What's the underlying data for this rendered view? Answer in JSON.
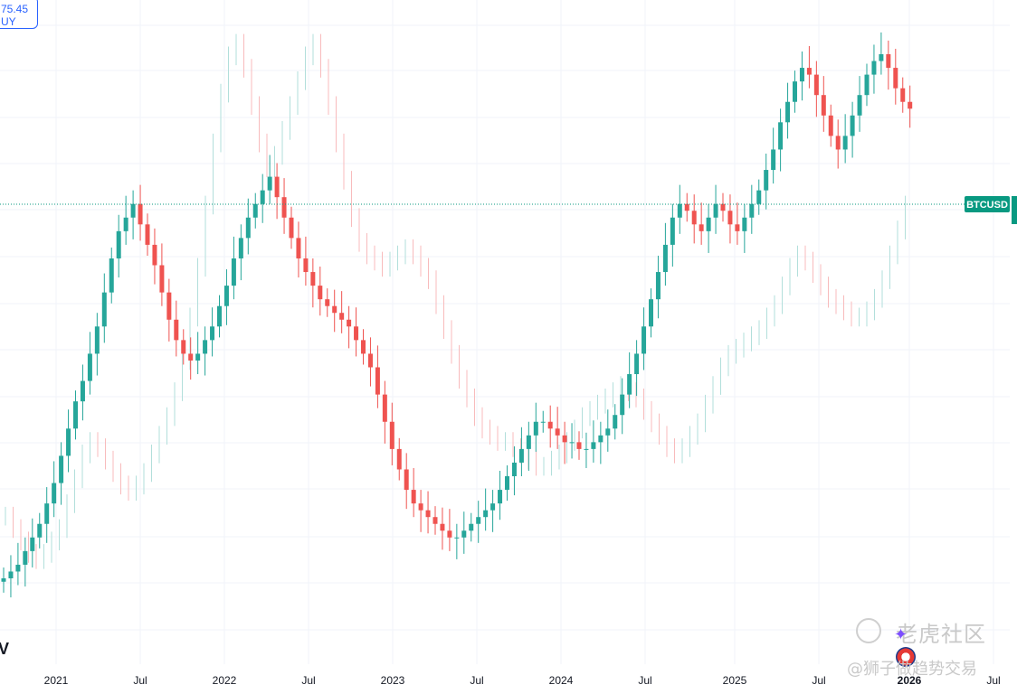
{
  "price_box": {
    "line1": "75.45",
    "line2": "UY"
  },
  "symbol_tag": "BTCUSD",
  "tv_logo": "V",
  "watermark": {
    "line1": "老虎社区",
    "line2": "@狮子做趋势交易"
  },
  "colors": {
    "up": "#26a69a",
    "down": "#ef5350",
    "faded_up": "#b2dfdb",
    "faded_down": "#f8bbbc",
    "grid": "#f0f3fa",
    "tag": "#089981"
  },
  "icons": [
    "tradingview-logo-icon",
    "tiger-community-icon",
    "spark-icon",
    "us-flag-icon"
  ],
  "chart_data": {
    "type": "candlestick",
    "x_tick_labels": [
      "2021",
      "Jul",
      "2022",
      "Jul",
      "2023",
      "Jul",
      "2024",
      "Jul",
      "2025",
      "Jul",
      "2026",
      "Jul"
    ],
    "x_tick_dates": [
      "2021-01",
      "2021-07",
      "2022-01",
      "2022-07",
      "2023-01",
      "2023-07",
      "2024-01",
      "2024-07",
      "2025-01",
      "2025-07",
      "2026-01",
      "2026-07"
    ],
    "highlighted_tick": "2026",
    "y_axis_labels": "none visible",
    "grid": true,
    "series": [
      {
        "name": "BTCUSD",
        "style": "weekly candles",
        "closes": [
          33,
          34,
          35,
          37,
          39,
          41,
          44,
          47,
          51,
          55,
          59,
          62,
          66,
          70,
          75,
          80,
          84,
          86,
          88,
          85,
          82,
          79,
          75,
          71,
          68,
          66,
          65,
          66,
          68,
          70,
          73,
          76,
          80,
          83,
          86,
          88,
          90,
          92,
          89,
          86,
          83,
          80,
          78,
          76,
          74,
          73,
          72,
          71,
          70,
          68,
          66,
          64,
          60,
          56,
          52,
          49,
          46,
          44,
          43,
          42,
          41,
          40,
          39,
          39,
          40,
          41,
          42,
          43,
          44,
          46,
          48,
          50,
          52,
          54,
          56,
          56,
          55,
          54,
          53,
          53,
          52,
          52,
          53,
          54,
          55,
          57,
          60,
          63,
          66,
          70,
          74,
          78,
          82,
          86,
          88,
          87,
          85,
          84,
          86,
          88,
          87,
          85,
          84,
          86,
          88,
          90,
          93,
          96,
          100,
          103,
          106,
          108,
          107,
          104,
          101,
          98,
          96,
          98,
          101,
          104,
          107,
          109,
          110,
          108,
          105,
          103,
          102
        ]
      },
      {
        "name": "comparison (faded)",
        "style": "weekly bars",
        "closes": [
          50,
          48,
          46,
          44,
          43,
          44,
          46,
          48,
          52,
          56,
          60,
          62,
          61,
          59,
          57,
          55,
          54,
          55,
          57,
          60,
          63,
          66,
          70,
          75,
          82,
          90,
          100,
          110,
          118,
          124,
          126,
          122,
          116,
          110,
          106,
          108,
          112,
          116,
          120,
          124,
          126,
          122,
          116,
          110,
          104,
          98,
          94,
          92,
          91,
          90,
          91,
          92,
          93,
          92,
          90,
          88,
          84,
          80,
          76,
          72,
          69,
          66,
          64,
          63,
          62,
          62,
          61,
          60,
          59,
          58,
          58,
          59,
          60,
          62,
          64,
          66,
          67,
          68,
          69,
          70,
          71,
          70,
          69,
          67,
          65,
          63,
          61,
          60,
          61,
          63,
          65,
          68,
          71,
          74,
          76,
          77,
          78,
          79,
          80,
          82,
          84,
          87,
          90,
          92,
          91,
          89,
          87,
          85,
          84,
          83,
          82,
          82,
          83,
          85,
          88,
          92,
          96,
          100
        ]
      }
    ]
  }
}
